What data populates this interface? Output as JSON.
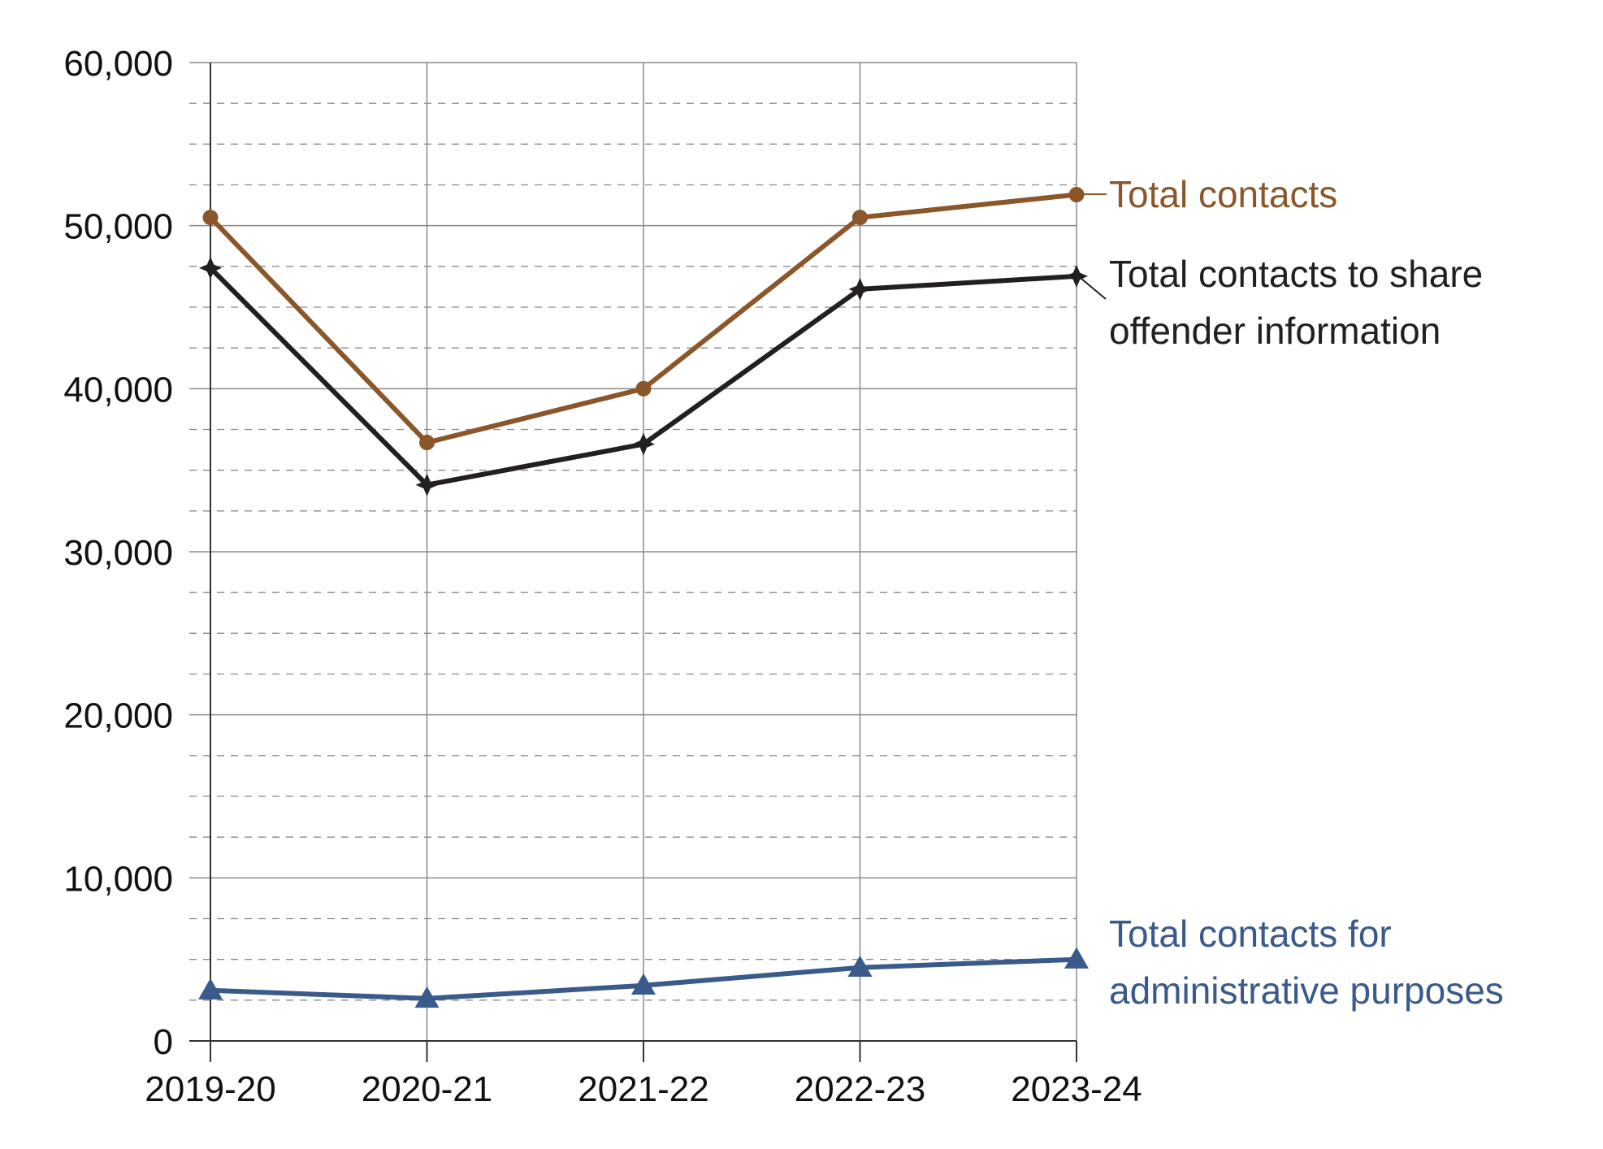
{
  "chart_data": {
    "type": "line",
    "categories": [
      "2019-20",
      "2020-21",
      "2021-22",
      "2022-23",
      "2023-24"
    ],
    "ylim": [
      0,
      60000
    ],
    "y_ticks": [
      0,
      10000,
      20000,
      30000,
      40000,
      50000,
      60000
    ],
    "y_tick_labels": [
      "0",
      "10,000",
      "20,000",
      "30,000",
      "40,000",
      "50,000",
      "60,000"
    ],
    "grid": {
      "major": true,
      "minor_dashed": true,
      "minor_step": 2500,
      "vertical": true
    },
    "series": [
      {
        "name_lines": [
          "Total contacts"
        ],
        "values": [
          50500,
          36700,
          40000,
          50500,
          51900
        ],
        "color": "#8B572A",
        "marker": "circle",
        "leader_line": true
      },
      {
        "name_lines": [
          "Total contacts to share",
          "offender information"
        ],
        "values": [
          47400,
          34100,
          36600,
          46100,
          46900
        ],
        "color": "#231F20",
        "marker": "star",
        "leader_line": true
      },
      {
        "name_lines": [
          "Total contacts for",
          "administrative purposes"
        ],
        "values": [
          3100,
          2600,
          3400,
          4500,
          5000
        ],
        "color": "#3A5A8C",
        "marker": "triangle",
        "leader_line": false
      }
    ]
  }
}
